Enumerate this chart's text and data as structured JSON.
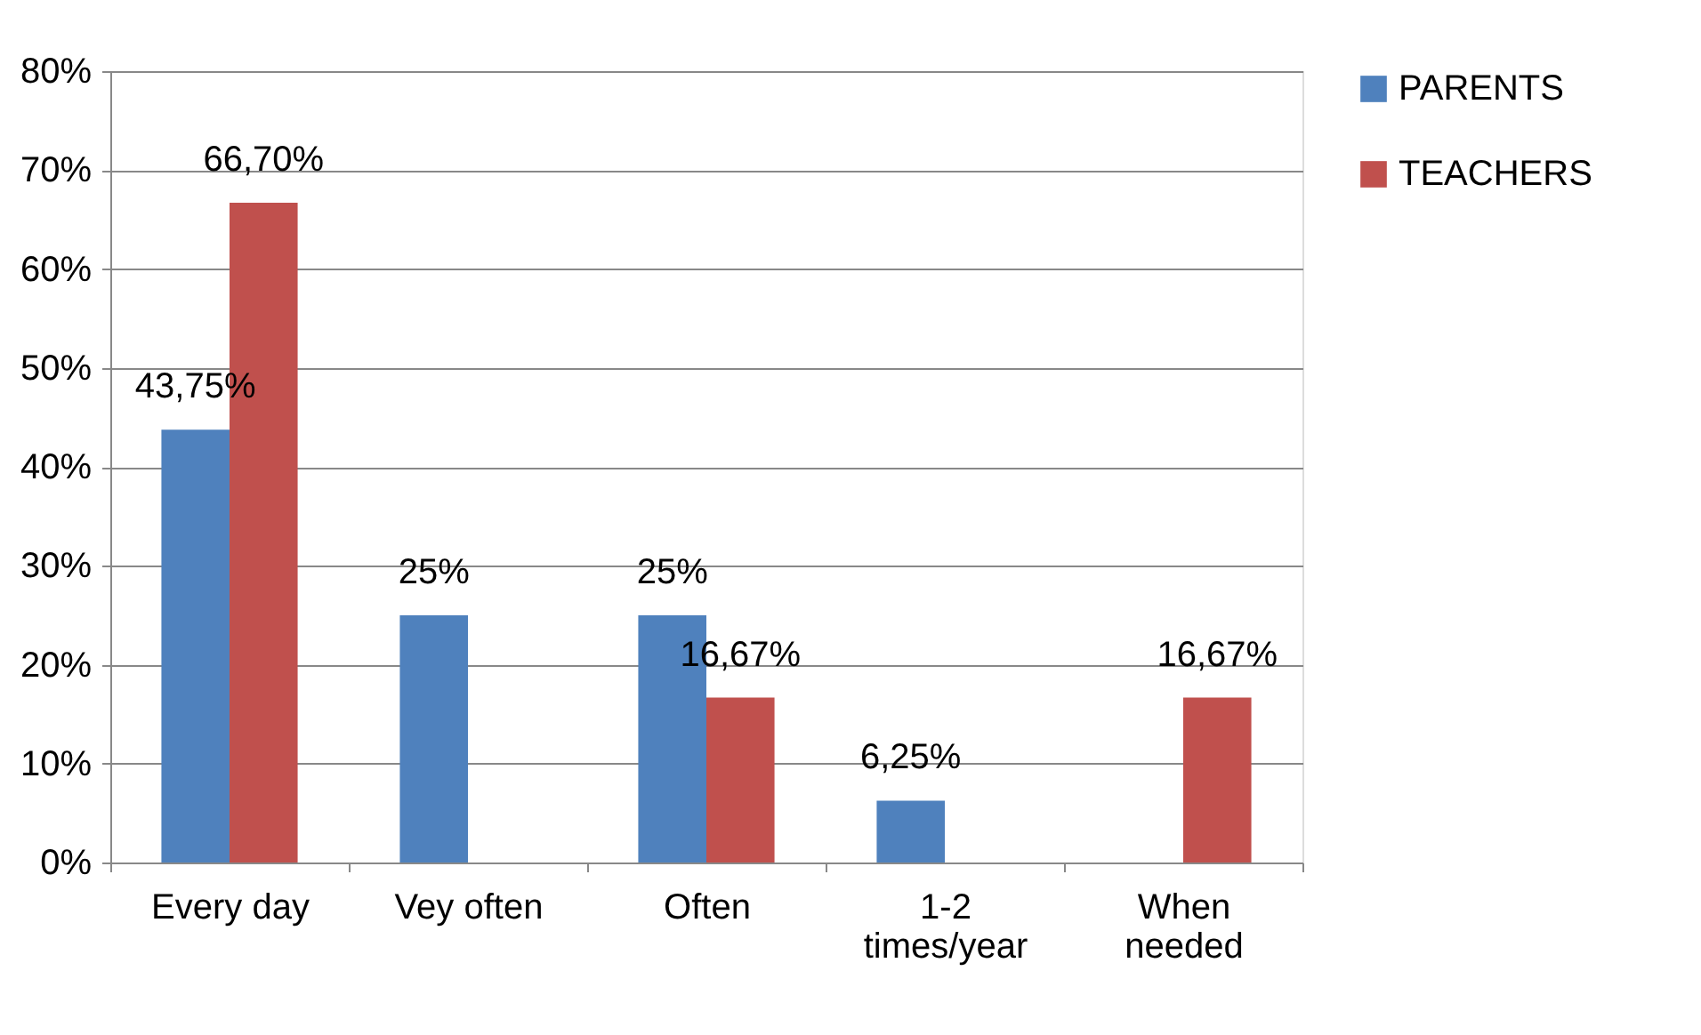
{
  "chart_data": {
    "type": "bar",
    "categories": [
      "Every day",
      "Vey often",
      "Often",
      "1-2 times/year",
      "When needed"
    ],
    "series": [
      {
        "name": "PARENTS",
        "color": "#4f81bd",
        "values": [
          43.75,
          25,
          25,
          6.25,
          null
        ],
        "value_labels": [
          "43,75%",
          "25%",
          "25%",
          "6,25%",
          null
        ]
      },
      {
        "name": "TEACHERS",
        "color": "#c0504d",
        "values": [
          66.7,
          null,
          16.67,
          null,
          16.67
        ],
        "value_labels": [
          "66,70%",
          null,
          "16,67%",
          null,
          "16,67%"
        ]
      }
    ],
    "ylim": [
      0,
      80
    ],
    "yticks": [
      {
        "value": 0,
        "label": "0%"
      },
      {
        "value": 10,
        "label": "10%"
      },
      {
        "value": 20,
        "label": "20%"
      },
      {
        "value": 30,
        "label": "30%"
      },
      {
        "value": 40,
        "label": "40%"
      },
      {
        "value": 50,
        "label": "50%"
      },
      {
        "value": 60,
        "label": "60%"
      },
      {
        "value": 70,
        "label": "70%"
      },
      {
        "value": 80,
        "label": "80%"
      }
    ],
    "grid": "y",
    "legend": "right"
  }
}
